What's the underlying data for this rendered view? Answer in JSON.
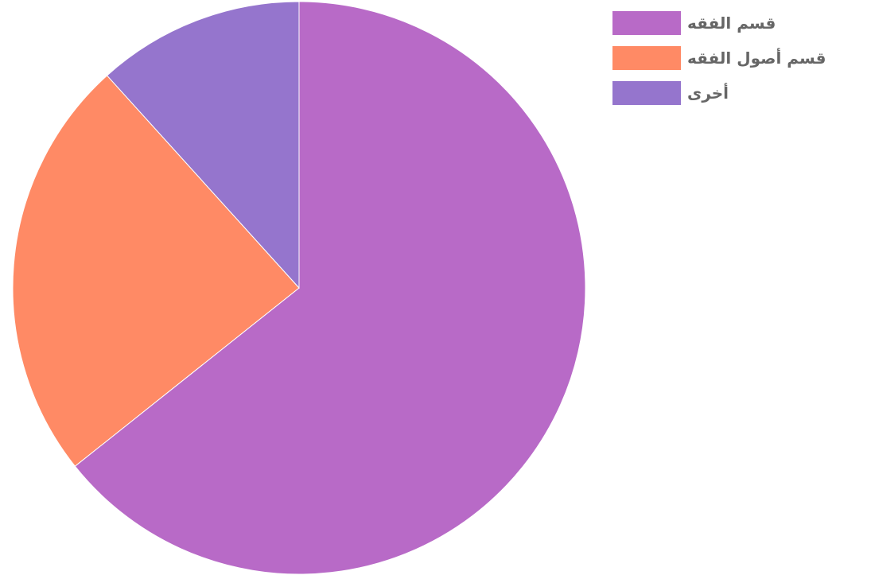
{
  "chart_data": {
    "type": "pie",
    "title": "",
    "legend_position": "top-right",
    "slices": [
      {
        "label": "قسم الفقه",
        "value": 64.3,
        "color": "#B86AC7"
      },
      {
        "label": "قسم أصول الفقه",
        "value": 24.0,
        "color": "#FF8A65"
      },
      {
        "label": "أخرى",
        "value": 11.7,
        "color": "#9575CD"
      }
    ]
  }
}
